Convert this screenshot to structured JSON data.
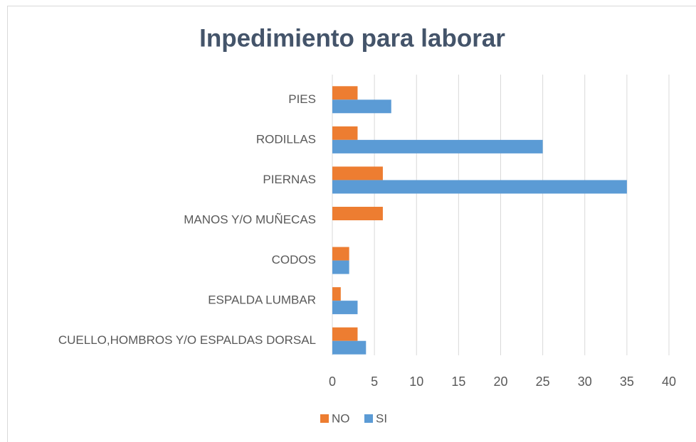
{
  "chart_data": {
    "type": "hbar",
    "title": "Inpedimiento para laborar",
    "categories": [
      "PIES",
      "RODILLAS",
      "PIERNAS",
      "MANOS Y/O MUÑECAS",
      "CODOS",
      "ESPALDA LUMBAR",
      "CUELLO,HOMBROS Y/O ESPALDAS DORSAL"
    ],
    "series": [
      {
        "name": "NO",
        "color": "#ed7d31",
        "values": [
          3,
          3,
          6,
          6,
          2,
          1,
          3
        ]
      },
      {
        "name": "SI",
        "color": "#5b9bd5",
        "values": [
          7,
          25,
          35,
          0,
          2,
          3,
          4
        ]
      }
    ],
    "xlim": [
      0,
      40
    ],
    "xticks": [
      0,
      5,
      10,
      15,
      20,
      25,
      30,
      35,
      40
    ],
    "grid": true,
    "legend": "bottom"
  }
}
